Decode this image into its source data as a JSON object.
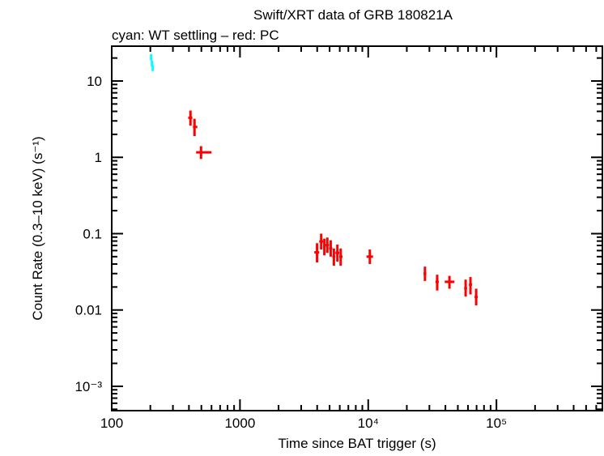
{
  "chart_data": {
    "type": "scatter",
    "title": "Swift/XRT data of GRB 180821A",
    "subtitle": "cyan: WT settling – red: PC",
    "xlabel": "Time since BAT trigger (s)",
    "ylabel": "Count Rate (0.3–10 keV) (s⁻¹)",
    "xscale": "log",
    "yscale": "log",
    "xlim": [
      100,
      670000
    ],
    "ylim": [
      0.00048,
      28.6
    ],
    "grid": false,
    "x_ticks": [
      {
        "value": 100,
        "label": "100"
      },
      {
        "value": 1000,
        "label": "1000"
      },
      {
        "value": 10000,
        "label": "10⁴"
      },
      {
        "value": 100000,
        "label": "10⁵"
      }
    ],
    "y_ticks": [
      {
        "value": 10,
        "label": "10"
      },
      {
        "value": 1,
        "label": "1"
      },
      {
        "value": 0.1,
        "label": "0.1"
      },
      {
        "value": 0.01,
        "label": "0.01"
      },
      {
        "value": 0.001,
        "label": "10⁻³"
      }
    ],
    "series": [
      {
        "name": "WT settling",
        "color": "#00ffff",
        "points": [
          {
            "x": 203,
            "y": 20.5,
            "xlo": 202,
            "xhi": 204,
            "ylo": 18.5,
            "yhi": 22.5
          },
          {
            "x": 206,
            "y": 17.0,
            "xlo": 205,
            "xhi": 207,
            "ylo": 15.5,
            "yhi": 18.5
          },
          {
            "x": 209,
            "y": 14.8,
            "xlo": 208,
            "xhi": 210,
            "ylo": 13.5,
            "yhi": 16.0
          }
        ]
      },
      {
        "name": "PC",
        "color": "#ff0000",
        "points": [
          {
            "x": 411,
            "y": 3.3,
            "xlo": 395,
            "xhi": 425,
            "ylo": 2.6,
            "yhi": 4.1
          },
          {
            "x": 442,
            "y": 2.5,
            "xlo": 430,
            "xhi": 465,
            "ylo": 1.9,
            "yhi": 3.2
          },
          {
            "x": 497,
            "y": 1.16,
            "xlo": 455,
            "xhi": 600,
            "ylo": 0.95,
            "yhi": 1.4
          },
          {
            "x": 3990,
            "y": 0.057,
            "xlo": 3800,
            "xhi": 4150,
            "ylo": 0.042,
            "yhi": 0.075
          },
          {
            "x": 4300,
            "y": 0.079,
            "xlo": 4150,
            "xhi": 4450,
            "ylo": 0.062,
            "yhi": 0.1
          },
          {
            "x": 4550,
            "y": 0.068,
            "xlo": 4450,
            "xhi": 4650,
            "ylo": 0.052,
            "yhi": 0.086
          },
          {
            "x": 4800,
            "y": 0.071,
            "xlo": 4650,
            "xhi": 4950,
            "ylo": 0.056,
            "yhi": 0.089
          },
          {
            "x": 5100,
            "y": 0.064,
            "xlo": 4950,
            "xhi": 5250,
            "ylo": 0.05,
            "yhi": 0.082
          },
          {
            "x": 5400,
            "y": 0.05,
            "xlo": 5250,
            "xhi": 5550,
            "ylo": 0.038,
            "yhi": 0.064
          },
          {
            "x": 5750,
            "y": 0.056,
            "xlo": 5550,
            "xhi": 5950,
            "ylo": 0.043,
            "yhi": 0.072
          },
          {
            "x": 6100,
            "y": 0.05,
            "xlo": 5950,
            "xhi": 6300,
            "ylo": 0.038,
            "yhi": 0.064
          },
          {
            "x": 10300,
            "y": 0.05,
            "xlo": 9700,
            "xhi": 10900,
            "ylo": 0.04,
            "yhi": 0.062
          },
          {
            "x": 27700,
            "y": 0.03,
            "xlo": 27000,
            "xhi": 28400,
            "ylo": 0.024,
            "yhi": 0.037
          },
          {
            "x": 34500,
            "y": 0.0234,
            "xlo": 33500,
            "xhi": 35500,
            "ylo": 0.018,
            "yhi": 0.029
          },
          {
            "x": 43000,
            "y": 0.0234,
            "xlo": 39500,
            "xhi": 47000,
            "ylo": 0.019,
            "yhi": 0.028
          },
          {
            "x": 57500,
            "y": 0.0193,
            "xlo": 56000,
            "xhi": 59000,
            "ylo": 0.015,
            "yhi": 0.025
          },
          {
            "x": 62700,
            "y": 0.0215,
            "xlo": 61000,
            "xhi": 64500,
            "ylo": 0.016,
            "yhi": 0.027
          },
          {
            "x": 69500,
            "y": 0.0148,
            "xlo": 67500,
            "xhi": 71500,
            "ylo": 0.0115,
            "yhi": 0.019
          }
        ]
      }
    ]
  }
}
